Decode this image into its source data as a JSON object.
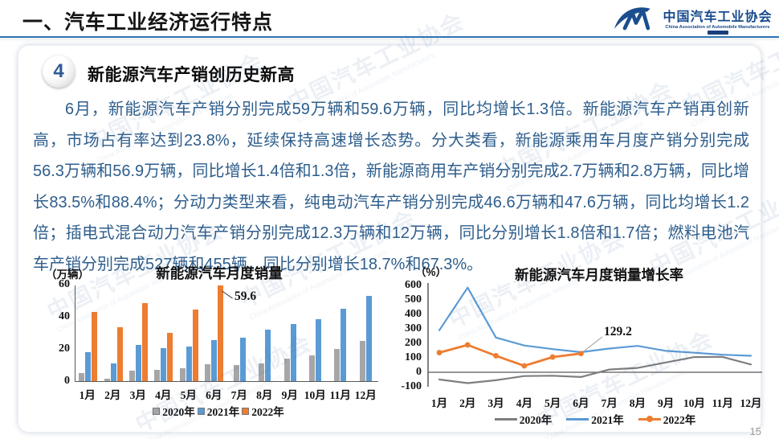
{
  "header": {
    "title": "一、汽车工业经济运行特点",
    "logo": {
      "cn": "中国汽车工业协会",
      "en": "China Association of Automobile Manufacturers"
    }
  },
  "section": {
    "number": "4",
    "heading": "新能源汽车产销创历史新高"
  },
  "body_text": "6月，新能源汽车产销分别完成59万辆和59.6万辆，同比均增长1.3倍。新能源汽车产销再创新高，市场占有率达到23.8%，延续保持高速增长态势。分大类看，新能源乘用车月度产销分别完成56.3万辆和56.9万辆，同比增长1.4倍和1.3倍，新能源商用车产销分别完成2.7万辆和2.8万辆，同比增长83.5%和88.4%；分动力类型来看，纯电动汽车产销分别完成46.6万辆和47.6万辆，同比均增长1.2倍；插电式混合动力汽车产销分别完成12.3万辆和12万辆，同比分别增长1.8倍和1.7倍；燃料电池汽车产销分别完成527辆和455辆，同比分别增长18.7%和67.3%。",
  "watermark": {
    "cn": "中国汽车工业协会",
    "en": "China Association of Automobile Manufacturers"
  },
  "page_number": "15",
  "chart_data": [
    {
      "type": "bar",
      "title": "新能源汽车月度销量",
      "unit_label": "（万辆）",
      "categories": [
        "1月",
        "2月",
        "3月",
        "4月",
        "5月",
        "6月",
        "7月",
        "8月",
        "9月",
        "10月",
        "11月",
        "12月"
      ],
      "series": [
        {
          "name": "2020年",
          "color": "#A6A6A6",
          "values": [
            4.8,
            1.5,
            6.6,
            7.2,
            8.2,
            10.4,
            9.8,
            10.9,
            13.8,
            16.0,
            20.0,
            24.8
          ]
        },
        {
          "name": "2021年",
          "color": "#5B9BD5",
          "values": [
            17.9,
            11.0,
            22.6,
            20.6,
            21.7,
            25.6,
            27.1,
            32.1,
            35.7,
            38.3,
            45.0,
            53.1
          ]
        },
        {
          "name": "2022年",
          "color": "#ED7D31",
          "values": [
            43.1,
            33.4,
            48.4,
            29.9,
            44.7,
            59.6,
            null,
            null,
            null,
            null,
            null,
            null
          ]
        }
      ],
      "ylim": [
        0,
        60
      ],
      "yticks": [
        0,
        20,
        40,
        60
      ],
      "grid": false,
      "legend_position": "bottom",
      "annotation": {
        "text": "59.6",
        "category": "6月",
        "series": "2022年"
      }
    },
    {
      "type": "line",
      "title": "新能源汽车月度销量增长率",
      "unit_label": "（%）",
      "categories": [
        "1月",
        "2月",
        "3月",
        "4月",
        "5月",
        "6月",
        "7月",
        "8月",
        "9月",
        "10月",
        "11月",
        "12月"
      ],
      "series": [
        {
          "name": "2020年",
          "color": "#7F7F7F",
          "marker": false,
          "values": [
            -50,
            -75,
            -55,
            -26,
            -24,
            -33,
            19,
            30,
            68,
            105,
            106,
            54
          ]
        },
        {
          "name": "2021年",
          "color": "#5B9BD5",
          "marker": false,
          "values": [
            290,
            585,
            240,
            185,
            160,
            139,
            164,
            182,
            148,
            135,
            121,
            114
          ]
        },
        {
          "name": "2022年",
          "color": "#ED7D31",
          "marker": true,
          "values": [
            135.8,
            189.1,
            114.1,
            44.6,
            105.2,
            129.2,
            null,
            null,
            null,
            null,
            null,
            null
          ]
        }
      ],
      "ylim": [
        -100,
        600
      ],
      "yticks": [
        600,
        500,
        400,
        300,
        200,
        100,
        0,
        -100
      ],
      "grid": false,
      "legend_position": "bottom",
      "annotation": {
        "text": "129.2",
        "category": "6月",
        "series": "2022年"
      }
    }
  ]
}
